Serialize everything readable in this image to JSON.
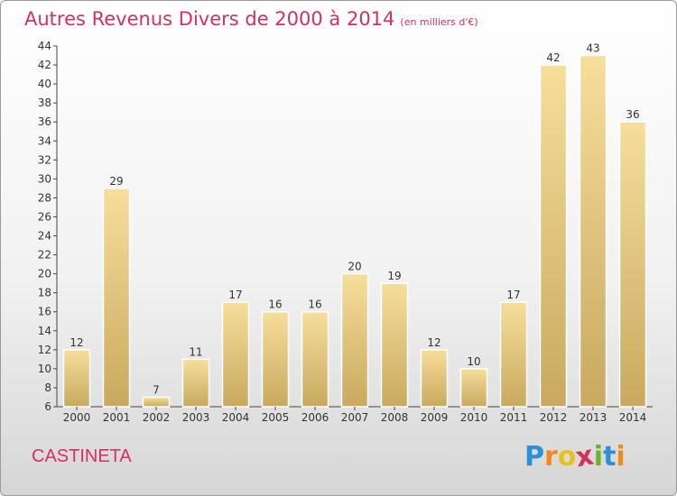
{
  "title": "Autres Revenus Divers de 2000 à 2014",
  "subtitle": "(en milliers d'€)",
  "location": "CASTINETA",
  "brand": {
    "letters": [
      "P",
      "r",
      "o",
      "x",
      "i",
      "t",
      "i"
    ],
    "colors": [
      "#2d8fd6",
      "#f08a1c",
      "#e8c21c",
      "#d2325d",
      "#6bb42a",
      "#2d8fd6",
      "#f08a1c"
    ]
  },
  "colors": {
    "title": "#d2325d",
    "bar_light": "#f6de9b",
    "bar_dark": "#c9a95f"
  },
  "chart_data": {
    "type": "bar",
    "categories": [
      "2000",
      "2001",
      "2002",
      "2003",
      "2004",
      "2005",
      "2006",
      "2007",
      "2008",
      "2009",
      "2010",
      "2011",
      "2012",
      "2013",
      "2014"
    ],
    "values": [
      12,
      29,
      7,
      11,
      17,
      16,
      16,
      20,
      19,
      12,
      10,
      17,
      42,
      43,
      36
    ],
    "title": "Autres Revenus Divers de 2000 à 2014",
    "xlabel": "",
    "ylabel": "",
    "ylim": [
      6,
      44
    ],
    "yticks": [
      6,
      8,
      10,
      12,
      14,
      16,
      18,
      20,
      22,
      24,
      26,
      28,
      30,
      32,
      34,
      36,
      38,
      40,
      42,
      44
    ],
    "grid": false,
    "data_labels": true
  }
}
